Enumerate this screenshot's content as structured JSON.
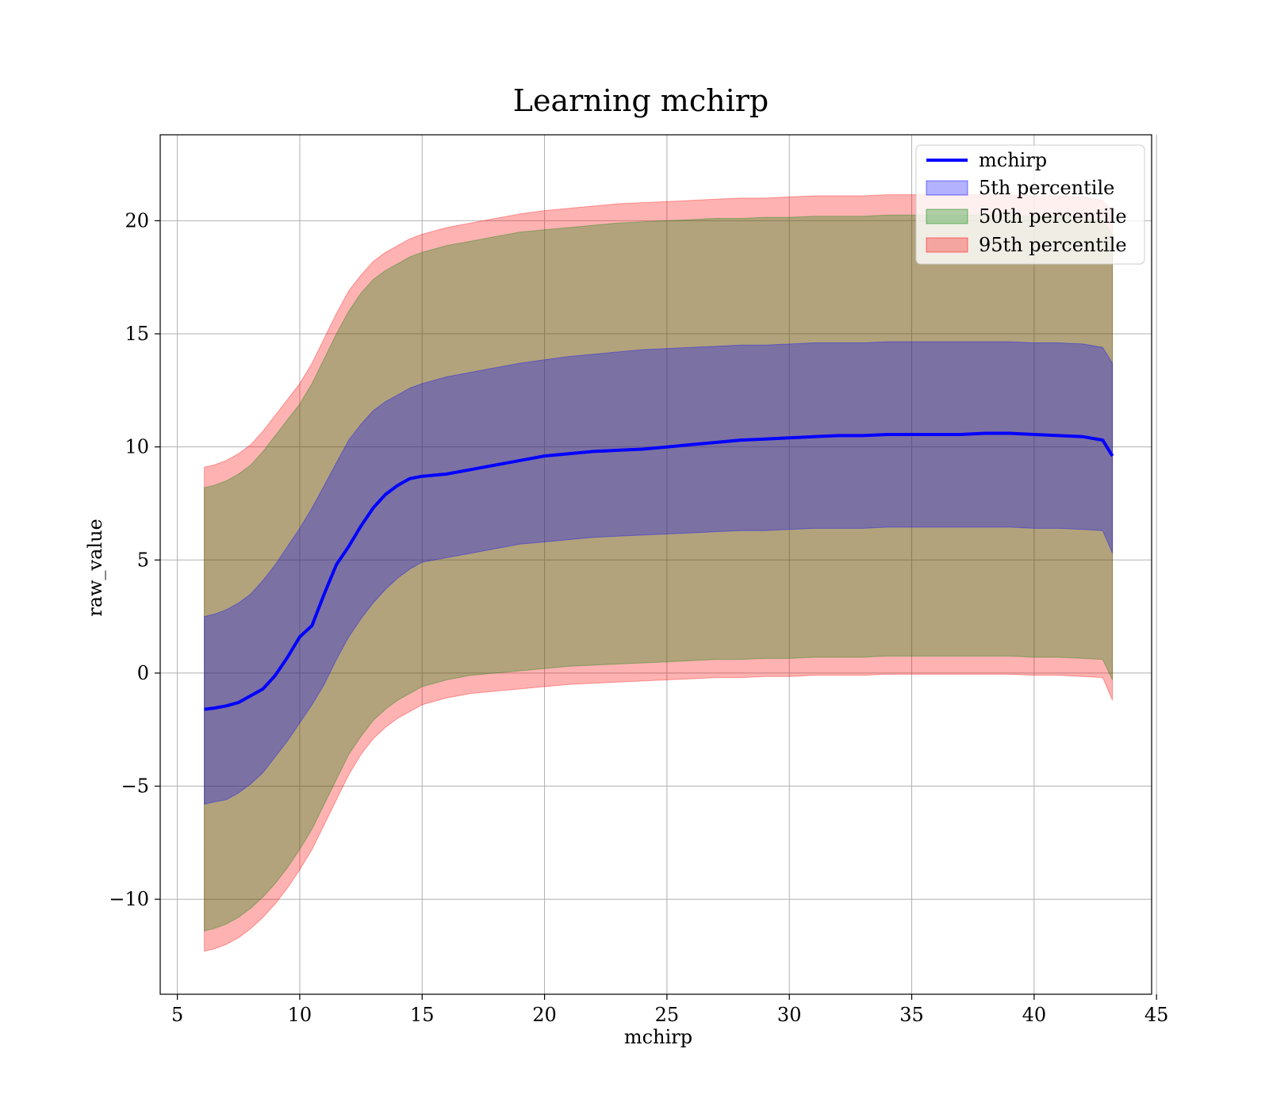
{
  "chart_data": {
    "type": "area",
    "title": "Learning mchirp",
    "xlabel": "mchirp",
    "ylabel": "raw_value",
    "xlim": [
      4.3,
      44.8
    ],
    "ylim": [
      -14.2,
      23.8
    ],
    "xticks": [
      5,
      10,
      15,
      20,
      25,
      30,
      35,
      40,
      45
    ],
    "yticks": [
      -10,
      -5,
      0,
      5,
      10,
      15,
      20
    ],
    "xtick_labels": [
      "5",
      "10",
      "15",
      "20",
      "25",
      "30",
      "35",
      "40",
      "45"
    ],
    "ytick_labels": [
      "−10",
      "−5",
      "0",
      "5",
      "10",
      "15",
      "20"
    ],
    "grid": true,
    "legend_position": "top-right",
    "x": [
      6.1,
      6.5,
      7.0,
      7.5,
      8.0,
      8.5,
      9.0,
      9.5,
      10.0,
      10.5,
      11.0,
      11.5,
      12.0,
      12.5,
      13.0,
      13.5,
      14.0,
      14.5,
      15.0,
      16.0,
      17.0,
      18.0,
      19.0,
      20.0,
      21.0,
      22.0,
      23.0,
      24.0,
      25.0,
      26.0,
      27.0,
      28.0,
      29.0,
      30.0,
      31.0,
      32.0,
      33.0,
      34.0,
      35.0,
      36.0,
      37.0,
      38.0,
      39.0,
      40.0,
      41.0,
      42.0,
      42.8,
      43.2
    ],
    "series": [
      {
        "name": "mchirp",
        "kind": "line",
        "color": "#0000ff",
        "values": [
          -1.6,
          -1.55,
          -1.45,
          -1.3,
          -1.0,
          -0.7,
          -0.1,
          0.7,
          1.6,
          2.1,
          3.5,
          4.8,
          5.6,
          6.5,
          7.3,
          7.9,
          8.3,
          8.6,
          8.7,
          8.8,
          9.0,
          9.2,
          9.4,
          9.6,
          9.7,
          9.8,
          9.85,
          9.9,
          10.0,
          10.1,
          10.2,
          10.3,
          10.35,
          10.4,
          10.45,
          10.5,
          10.5,
          10.55,
          10.55,
          10.55,
          10.55,
          10.6,
          10.6,
          10.55,
          10.5,
          10.45,
          10.3,
          9.6
        ]
      },
      {
        "name": "5th percentile",
        "kind": "band",
        "color": "#0000ff",
        "opacity": 0.3,
        "lower": [
          -5.8,
          -5.7,
          -5.6,
          -5.3,
          -4.9,
          -4.4,
          -3.7,
          -3.0,
          -2.2,
          -1.4,
          -0.5,
          0.6,
          1.6,
          2.4,
          3.1,
          3.7,
          4.2,
          4.6,
          4.9,
          5.1,
          5.3,
          5.5,
          5.7,
          5.8,
          5.9,
          6.0,
          6.05,
          6.1,
          6.15,
          6.2,
          6.25,
          6.3,
          6.3,
          6.35,
          6.4,
          6.4,
          6.4,
          6.45,
          6.45,
          6.45,
          6.45,
          6.45,
          6.45,
          6.4,
          6.4,
          6.35,
          6.3,
          5.3
        ],
        "upper": [
          2.5,
          2.6,
          2.8,
          3.1,
          3.5,
          4.1,
          4.8,
          5.6,
          6.4,
          7.3,
          8.3,
          9.3,
          10.3,
          11.0,
          11.6,
          12.0,
          12.3,
          12.6,
          12.8,
          13.1,
          13.3,
          13.5,
          13.7,
          13.85,
          14.0,
          14.1,
          14.2,
          14.3,
          14.35,
          14.4,
          14.45,
          14.5,
          14.5,
          14.55,
          14.6,
          14.6,
          14.6,
          14.65,
          14.65,
          14.65,
          14.65,
          14.65,
          14.65,
          14.6,
          14.6,
          14.55,
          14.4,
          13.7
        ]
      },
      {
        "name": "50th percentile",
        "kind": "band",
        "color": "#008000",
        "opacity": 0.3,
        "lower": [
          -11.4,
          -11.3,
          -11.1,
          -10.8,
          -10.4,
          -9.9,
          -9.3,
          -8.6,
          -7.8,
          -6.9,
          -5.8,
          -4.7,
          -3.6,
          -2.8,
          -2.1,
          -1.6,
          -1.2,
          -0.9,
          -0.6,
          -0.3,
          -0.1,
          0.0,
          0.1,
          0.2,
          0.3,
          0.35,
          0.4,
          0.45,
          0.5,
          0.55,
          0.6,
          0.6,
          0.65,
          0.65,
          0.7,
          0.7,
          0.7,
          0.75,
          0.75,
          0.75,
          0.75,
          0.75,
          0.75,
          0.7,
          0.7,
          0.65,
          0.6,
          -0.3
        ],
        "upper": [
          8.2,
          8.3,
          8.5,
          8.8,
          9.2,
          9.8,
          10.5,
          11.2,
          11.9,
          12.8,
          13.9,
          15.0,
          16.0,
          16.8,
          17.4,
          17.8,
          18.1,
          18.4,
          18.6,
          18.9,
          19.1,
          19.3,
          19.5,
          19.6,
          19.7,
          19.8,
          19.9,
          19.95,
          20.0,
          20.05,
          20.1,
          20.1,
          20.15,
          20.15,
          20.2,
          20.2,
          20.2,
          20.25,
          20.25,
          20.25,
          20.25,
          20.25,
          20.25,
          20.2,
          20.2,
          20.15,
          20.0,
          19.4
        ]
      },
      {
        "name": "95th percentile",
        "kind": "band",
        "color": "#ff0000",
        "opacity": 0.3,
        "lower": [
          -12.3,
          -12.2,
          -12.0,
          -11.7,
          -11.3,
          -10.8,
          -10.2,
          -9.5,
          -8.7,
          -7.8,
          -6.7,
          -5.6,
          -4.5,
          -3.6,
          -2.9,
          -2.4,
          -2.0,
          -1.7,
          -1.4,
          -1.1,
          -0.9,
          -0.8,
          -0.7,
          -0.6,
          -0.5,
          -0.45,
          -0.4,
          -0.35,
          -0.3,
          -0.25,
          -0.2,
          -0.2,
          -0.15,
          -0.15,
          -0.1,
          -0.1,
          -0.1,
          -0.05,
          -0.05,
          -0.05,
          -0.05,
          -0.05,
          -0.05,
          -0.1,
          -0.1,
          -0.15,
          -0.2,
          -1.2
        ],
        "upper": [
          9.1,
          9.2,
          9.4,
          9.7,
          10.1,
          10.7,
          11.4,
          12.1,
          12.8,
          13.7,
          14.8,
          15.9,
          16.9,
          17.6,
          18.2,
          18.6,
          18.9,
          19.2,
          19.4,
          19.7,
          19.9,
          20.1,
          20.3,
          20.45,
          20.55,
          20.65,
          20.75,
          20.8,
          20.85,
          20.9,
          20.95,
          21.0,
          21.0,
          21.05,
          21.1,
          21.1,
          21.1,
          21.15,
          21.15,
          21.15,
          21.15,
          21.15,
          21.15,
          21.1,
          21.1,
          21.05,
          20.9,
          20.4
        ]
      }
    ]
  }
}
